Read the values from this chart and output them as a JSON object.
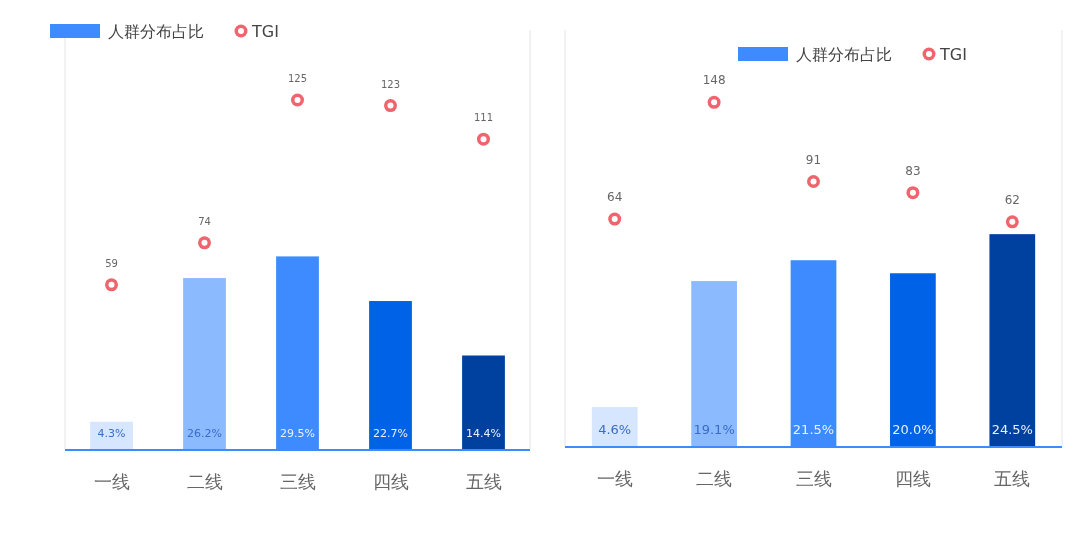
{
  "chart_data": [
    {
      "type": "bar",
      "categories": [
        "一线",
        "二线",
        "三线",
        "四线",
        "五线"
      ],
      "legend": "top left",
      "tick_labels": "x",
      "ylim": [
        0,
        64
      ],
      "y2lim": [
        0,
        150
      ],
      "series": [
        {
          "name": "人群分布占比",
          "type": "bar",
          "color": "#3d8bff",
          "colors": [
            "#d6e6ff",
            "#8cbaff",
            "#3d8bff",
            "#0062e6",
            "#00409e"
          ],
          "values": [
            4.3,
            26.2,
            29.5,
            22.7,
            14.4
          ],
          "value_labels": [
            "4.3%",
            "26.2%",
            "29.5%",
            "22.7%",
            "14.4%"
          ]
        },
        {
          "name": "TGI",
          "type": "scatter",
          "axis": "y2",
          "color": "#f0646e",
          "marker": "circle",
          "values": [
            59,
            74,
            125,
            123,
            111
          ],
          "value_labels": [
            "59",
            "74",
            "125",
            "123",
            "111"
          ]
        }
      ]
    },
    {
      "type": "bar",
      "categories": [
        "一线",
        "二线",
        "三线",
        "四线",
        "五线"
      ],
      "legend": "top right",
      "tick_labels": "x",
      "ylim": [
        0,
        48
      ],
      "y2lim": [
        -100,
        200
      ],
      "series": [
        {
          "name": "人群分布占比",
          "type": "bar",
          "color": "#3d8bff",
          "colors": [
            "#d6e6ff",
            "#8cbaff",
            "#3d8bff",
            "#0062e6",
            "#00409e"
          ],
          "values": [
            4.6,
            19.1,
            21.5,
            20.0,
            24.5
          ],
          "value_labels": [
            "4.6%",
            "19.1%",
            "21.5%",
            "20.0%",
            "24.5%"
          ]
        },
        {
          "name": "TGI",
          "type": "scatter",
          "axis": "y2",
          "color": "#f0646e",
          "marker": "circle",
          "values": [
            64,
            148,
            91,
            83,
            62
          ],
          "value_labels": [
            "64",
            "148",
            "91",
            "83",
            "62"
          ]
        }
      ]
    }
  ]
}
